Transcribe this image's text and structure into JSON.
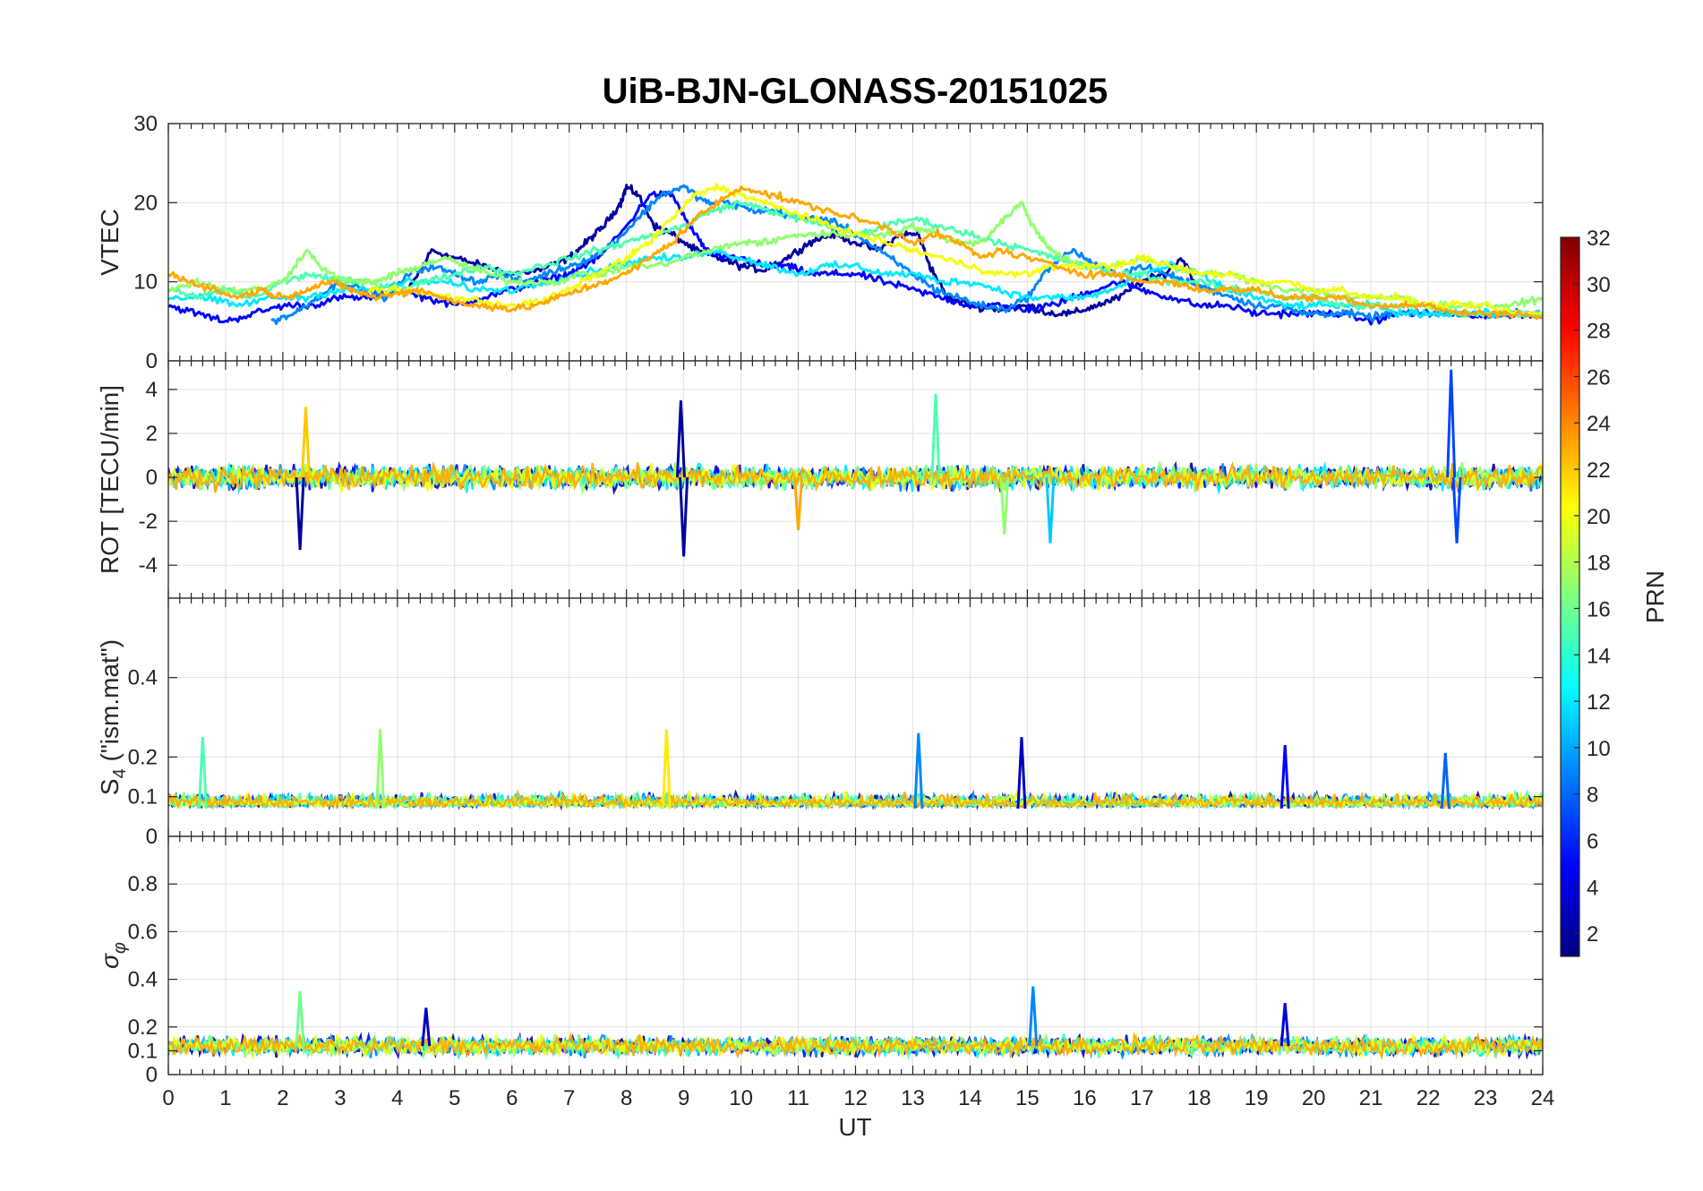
{
  "chart_data": {
    "title": "UiB-BJN-GLONASS-20151025",
    "type": "line",
    "xlabel": "UT",
    "xlim": [
      0,
      24
    ],
    "xticks": [
      "0",
      "1",
      "2",
      "3",
      "4",
      "5",
      "6",
      "7",
      "8",
      "9",
      "10",
      "11",
      "12",
      "13",
      "14",
      "15",
      "16",
      "17",
      "18",
      "19",
      "20",
      "21",
      "22",
      "23",
      "24"
    ],
    "colorbar": {
      "label": "PRN",
      "range": [
        1,
        32
      ],
      "ticks": [
        "2",
        "4",
        "6",
        "8",
        "10",
        "12",
        "14",
        "16",
        "18",
        "20",
        "22",
        "24",
        "26",
        "28",
        "30",
        "32"
      ],
      "colormap": [
        "#00007f",
        "#0000ff",
        "#007fff",
        "#00ffff",
        "#7fff7f",
        "#ffff00",
        "#ff7f00",
        "#ff0000",
        "#7f0000"
      ]
    },
    "panels": [
      {
        "id": "vtec",
        "ylabel": "VTEC",
        "ylim": [
          0,
          30
        ],
        "yticks": [
          "0",
          "10",
          "20",
          "30"
        ],
        "series": [
          {
            "prn": 2,
            "x": [
              4.2,
              4.6,
              5.0,
              5.5,
              6.0,
              6.5,
              7.0,
              7.3,
              7.6,
              7.9,
              8.0,
              8.2,
              8.5,
              8.8,
              9.2,
              9.6,
              10.0,
              10.4,
              10.8,
              11.2,
              11.6,
              12.0,
              12.4,
              12.8,
              13.1,
              13.3,
              13.6,
              14.0,
              14.5,
              15.0,
              15.4,
              15.8,
              16.2,
              16.6,
              17.0,
              17.4,
              17.7,
              18.0
            ],
            "y": [
              9,
              14,
              13,
              12,
              11,
              11.5,
              13,
              15,
              17,
              20,
              22,
              21,
              17,
              16,
              14,
              13,
              12,
              11.5,
              13,
              15,
              16,
              15,
              14,
              16,
              16,
              12,
              8,
              7,
              6.5,
              7,
              6,
              6,
              7,
              8,
              10,
              11,
              13,
              9
            ]
          },
          {
            "prn": 5,
            "x": [
              0.0,
              0.5,
              1.0,
              1.5,
              2.0,
              2.5,
              3.0,
              3.5,
              4.0,
              4.5,
              5.0,
              5.5,
              6.0,
              6.5,
              7.0,
              7.5,
              8.0,
              8.4,
              8.8,
              9.1,
              9.4,
              9.7,
              10.0,
              10.4,
              10.8,
              11.2,
              11.6,
              12.0,
              12.5,
              13.0,
              13.5,
              14.0,
              14.5,
              15.0,
              15.4,
              15.8,
              16.2,
              16.6,
              17.0,
              17.5,
              18.0,
              18.5,
              19.0,
              19.5,
              20.0,
              20.5,
              21.0,
              21.5,
              22.0,
              22.5,
              23.0,
              23.5,
              24.0
            ],
            "y": [
              7,
              6,
              5,
              6,
              7,
              7,
              8,
              8,
              9,
              8,
              7,
              8,
              9,
              10,
              11,
              13,
              17,
              21,
              21,
              17,
              14,
              13,
              13,
              12,
              12,
              11,
              11,
              11,
              10,
              9,
              8,
              7,
              7,
              6.5,
              7,
              8,
              9,
              10,
              9,
              8,
              7,
              7,
              6,
              6,
              6,
              6,
              5,
              6,
              6,
              6,
              5.5,
              6,
              5.5
            ]
          },
          {
            "prn": 9,
            "x": [
              1.8,
              2.2,
              2.6,
              3.0,
              3.4,
              3.8,
              4.2,
              4.6,
              5.0,
              5.4,
              5.8,
              6.2,
              6.6,
              7.0,
              7.4,
              7.8,
              8.2,
              8.6,
              9.0,
              9.4,
              9.8,
              10.2,
              10.6,
              11.0,
              11.4,
              11.8,
              12.2,
              12.6,
              13.0,
              13.4,
              13.8,
              14.2,
              14.6,
              15.0,
              15.4,
              15.8,
              16.2,
              16.6,
              17.0,
              17.4,
              17.8,
              18.2,
              18.6,
              19.0,
              19.4,
              19.8,
              20.2,
              20.6,
              21.0,
              21.4,
              21.8,
              22.2,
              22.6,
              23.0,
              23.4,
              23.8,
              24.0
            ],
            "y": [
              5,
              6,
              8,
              10,
              9,
              8,
              11,
              12,
              11,
              10,
              11,
              10,
              11,
              12,
              13,
              15,
              18,
              21,
              22,
              20,
              20,
              19,
              19,
              18,
              18,
              17,
              15,
              13,
              11,
              9,
              8,
              7,
              6.5,
              8,
              12,
              14,
              12,
              11,
              12,
              11,
              10,
              9,
              8,
              7,
              7,
              6,
              6,
              6,
              5.5,
              6,
              6,
              6,
              6,
              6,
              6,
              6,
              6
            ]
          },
          {
            "prn": 12,
            "x": [
              0.0,
              0.6,
              1.2,
              1.8,
              2.4,
              3.0,
              3.6,
              4.2,
              4.8,
              5.4,
              6.0,
              6.6,
              7.2,
              7.8,
              8.4,
              9.0,
              9.5,
              10.0,
              10.5,
              11.0,
              11.5,
              12.0,
              12.5,
              13.0,
              13.5,
              14.0,
              14.5,
              15.0,
              15.5,
              16.0,
              16.5,
              17.0,
              17.5,
              18.0,
              18.5,
              19.0,
              19.5,
              20.0,
              20.5,
              21.0,
              21.5,
              22.0,
              22.5,
              23.0,
              23.5,
              24.0
            ],
            "y": [
              8,
              8,
              7,
              8,
              8,
              9,
              9,
              10,
              10,
              9,
              9,
              10,
              11,
              12,
              13,
              13,
              14,
              13,
              12,
              11,
              12,
              12,
              11,
              11,
              10,
              10,
              9,
              8,
              8,
              8,
              9,
              11,
              12,
              11,
              9,
              8,
              7,
              7,
              7,
              7,
              6,
              6,
              6,
              6,
              6,
              6
            ]
          },
          {
            "prn": 15,
            "x": [
              0.0,
              0.5,
              1.0,
              1.5,
              2.0,
              2.5,
              3.0,
              3.5,
              4.0,
              4.5,
              5.0,
              5.5,
              6.0,
              6.5,
              7.0,
              7.5,
              8.0,
              8.5,
              9.0,
              9.5,
              10.0,
              10.5,
              11.0,
              11.5,
              12.0,
              12.5,
              13.0,
              13.5,
              14.0,
              14.5,
              15.0,
              15.5,
              16.0,
              16.5,
              17.0,
              17.5,
              18.0,
              18.5,
              19.0,
              19.5,
              20.0,
              20.5,
              21.0,
              21.5,
              22.0,
              22.5,
              23.0,
              23.5,
              24.0
            ],
            "y": [
              9,
              8,
              9,
              8,
              10,
              11,
              10,
              10,
              9,
              10,
              11,
              12,
              11,
              12,
              13,
              14,
              15,
              16,
              17,
              19,
              20,
              19,
              18,
              17,
              16,
              17,
              18,
              17,
              16,
              15,
              14,
              13,
              12,
              11,
              11,
              10,
              10,
              9,
              9,
              8,
              8,
              7,
              7,
              7,
              7,
              6,
              6,
              6,
              6
            ]
          },
          {
            "prn": 17,
            "x": [
              0.0,
              0.5,
              1.0,
              1.5,
              2.0,
              2.4,
              2.8,
              3.2,
              3.6,
              4.0,
              4.4,
              4.8,
              5.2,
              5.6,
              6.0,
              6.4,
              6.8,
              7.2,
              7.6,
              8.0,
              8.5,
              9.0,
              9.5,
              10.0,
              10.5,
              11.0,
              11.5,
              12.0,
              12.5,
              13.0,
              13.4,
              13.8,
              14.2,
              14.6,
              14.9,
              15.1,
              15.3,
              15.6,
              16.0,
              16.5,
              17.0,
              17.5,
              18.0,
              18.5,
              19.0,
              19.5,
              20.0,
              20.5,
              21.0,
              21.5,
              22.0,
              22.5,
              23.0,
              23.5,
              24.0
            ],
            "y": [
              9,
              10,
              9,
              9,
              10,
              14,
              11,
              10,
              10,
              11,
              12,
              13,
              12,
              11,
              10,
              10,
              10,
              11,
              11,
              12,
              12,
              13,
              14,
              15,
              15,
              16,
              16,
              16,
              16,
              17,
              16,
              15,
              15,
              18,
              20,
              17,
              15,
              13,
              12,
              12,
              13,
              12,
              11,
              11,
              10,
              9,
              9,
              8,
              8,
              8,
              7,
              7,
              7,
              7,
              8
            ]
          },
          {
            "prn": 20,
            "x": [
              3.5,
              4.0,
              4.5,
              5.0,
              5.5,
              6.0,
              6.5,
              7.0,
              7.5,
              8.0,
              8.4,
              8.8,
              9.2,
              9.6,
              10.0,
              10.4,
              10.8,
              11.2,
              11.6,
              12.0,
              12.5,
              13.0,
              13.5,
              14.0,
              14.5,
              15.0,
              15.5,
              16.0,
              16.5,
              17.0,
              17.5,
              18.0,
              18.5,
              19.0,
              19.5,
              20.0,
              20.5,
              21.0,
              21.5,
              22.0,
              22.5,
              23.0,
              23.5,
              24.0
            ],
            "y": [
              9,
              9,
              8.5,
              8,
              7.5,
              7,
              7.5,
              9,
              11,
              13,
              15,
              18,
              21,
              22,
              21,
              20,
              19,
              18,
              17,
              16,
              15,
              14,
              13,
              12,
              11,
              11,
              12,
              12,
              12,
              13,
              12,
              11,
              11,
              10,
              10,
              9,
              9,
              8,
              8,
              7,
              7,
              7,
              6,
              6
            ]
          },
          {
            "prn": 23,
            "x": [
              0.0,
              0.4,
              0.8,
              1.2,
              1.6,
              2.0,
              2.4,
              2.8,
              3.2,
              3.6,
              4.0,
              4.4,
              4.8,
              5.2,
              5.6,
              6.0,
              6.4,
              6.8,
              7.2,
              7.6,
              8.0,
              8.4,
              8.8,
              9.2,
              9.6,
              10.0,
              10.5,
              11.0,
              11.5,
              12.0,
              12.5,
              13.0,
              13.4,
              13.8,
              14.2,
              14.5,
              15.0,
              15.5,
              16.0,
              16.5,
              17.0,
              17.5,
              18.0,
              18.5,
              19.0,
              19.5,
              20.0,
              20.5,
              21.0,
              21.5,
              22.0,
              22.5,
              23.0,
              23.5,
              24.0
            ],
            "y": [
              11,
              10,
              9,
              8,
              9,
              8,
              9,
              10,
              9,
              8,
              8.5,
              9,
              8,
              7,
              7,
              6.5,
              7,
              8,
              9,
              10,
              11,
              13,
              15,
              18,
              20,
              22,
              21,
              20,
              19,
              18,
              17,
              15,
              16,
              15,
              13,
              14,
              13,
              12,
              11,
              11,
              10,
              10,
              9,
              9,
              9,
              8,
              8,
              8,
              7,
              7,
              7,
              6,
              6,
              6,
              5.5
            ]
          }
        ]
      },
      {
        "id": "rot",
        "ylabel": "ROT [TECU/min]",
        "ylim": [
          -5.5,
          5.3
        ],
        "yticks": [
          "-4",
          "-2",
          "0",
          "2",
          "4"
        ],
        "spikes": [
          {
            "prn": 2,
            "x": 2.3,
            "y": -3.3
          },
          {
            "prn": 22,
            "x": 2.4,
            "y": 3.2
          },
          {
            "prn": 2,
            "x": 8.95,
            "y": 3.5
          },
          {
            "prn": 2,
            "x": 9.0,
            "y": -3.6
          },
          {
            "prn": 15,
            "x": 13.4,
            "y": 3.8
          },
          {
            "prn": 7,
            "x": 22.4,
            "y": 4.9
          },
          {
            "prn": 7,
            "x": 22.5,
            "y": -3.0
          },
          {
            "prn": 11,
            "x": 15.4,
            "y": -3.0
          },
          {
            "prn": 23,
            "x": 11.0,
            "y": -2.4
          },
          {
            "prn": 17,
            "x": 14.6,
            "y": -2.6
          }
        ]
      },
      {
        "id": "s4",
        "ylabel": "S4 (\"ism.mat\")",
        "ylim": [
          0,
          0.6
        ],
        "yticks": [
          "0",
          "0.1",
          "0.2",
          "0.4"
        ],
        "peaks": [
          {
            "prn": 15,
            "x": 0.6,
            "y": 0.25
          },
          {
            "prn": 17,
            "x": 3.7,
            "y": 0.27
          },
          {
            "prn": 21,
            "x": 8.7,
            "y": 0.27
          },
          {
            "prn": 9,
            "x": 13.1,
            "y": 0.26
          },
          {
            "prn": 3,
            "x": 14.9,
            "y": 0.25
          },
          {
            "prn": 5,
            "x": 19.5,
            "y": 0.23
          },
          {
            "prn": 8,
            "x": 22.3,
            "y": 0.21
          }
        ]
      },
      {
        "id": "sigma_phi",
        "ylabel": "σφ",
        "ylim": [
          0,
          1
        ],
        "yticks": [
          "0",
          "0.1",
          "0.2",
          "0.4",
          "0.6",
          "0.8"
        ],
        "peaks": [
          {
            "prn": 16,
            "x": 2.3,
            "y": 0.35
          },
          {
            "prn": 9,
            "x": 15.1,
            "y": 0.37
          },
          {
            "prn": 4,
            "x": 19.5,
            "y": 0.3
          },
          {
            "prn": 3,
            "x": 4.5,
            "y": 0.28
          }
        ]
      }
    ]
  }
}
